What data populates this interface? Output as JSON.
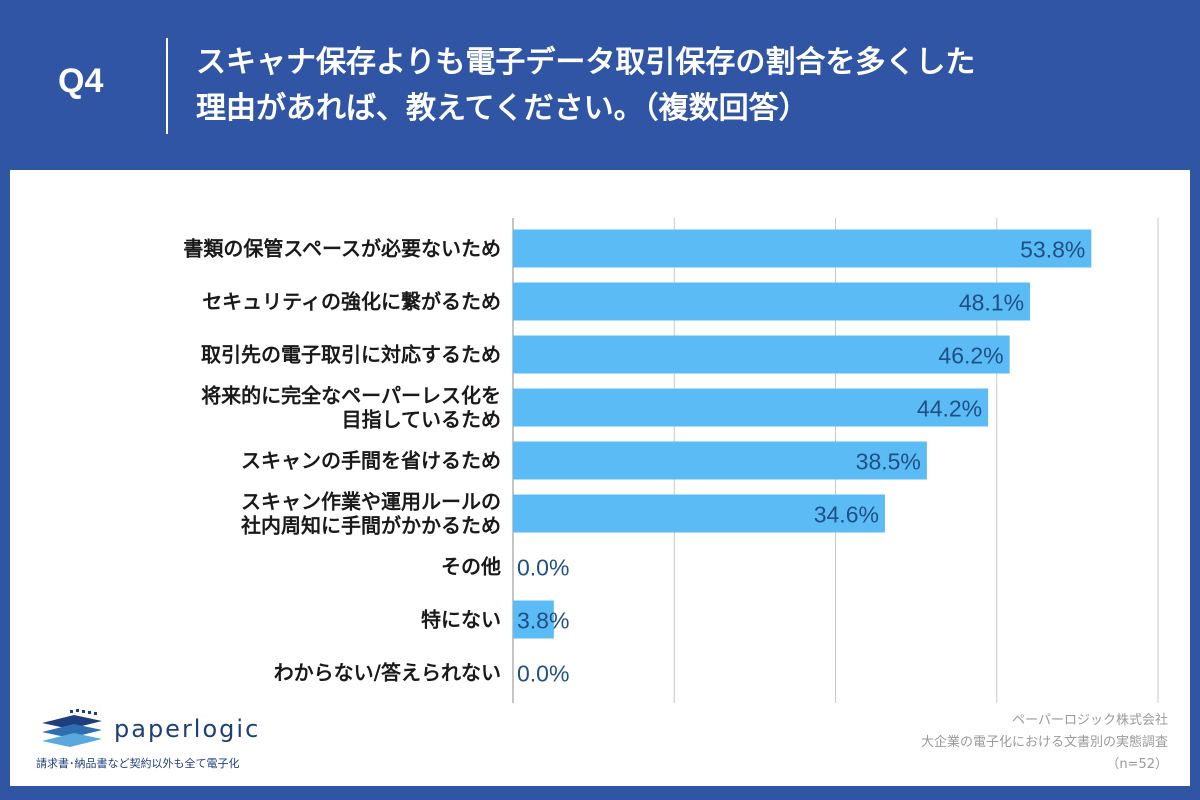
{
  "header": {
    "q_number": "Q4",
    "title_line1": "スキャナ保存よりも電子データ取引保存の割合を多くした",
    "title_line2": "理由があれば、教えてください。（複数回答）"
  },
  "colors": {
    "header_bg": "#2f55a4",
    "bar": "#5bbcf5",
    "value_text": "#1f4f86",
    "label_text": "#1a1a1a",
    "grid": "#c8c8c8"
  },
  "chart_data": {
    "type": "bar",
    "orientation": "horizontal",
    "categories": [
      [
        "書類の保管スペースが必要ないため"
      ],
      [
        "セキュリティの強化に繋がるため"
      ],
      [
        "取引先の電子取引に対応するため"
      ],
      [
        "将来的に完全なペーパーレス化を",
        "目指しているため"
      ],
      [
        "スキャンの手間を省けるため"
      ],
      [
        "スキャン作業や運用ルールの",
        "社内周知に手間がかかるため"
      ],
      [
        "その他"
      ],
      [
        "特にない"
      ],
      [
        "わからない/答えられない"
      ]
    ],
    "values": [
      53.8,
      48.1,
      46.2,
      44.2,
      38.5,
      34.6,
      0.0,
      3.8,
      0.0
    ],
    "value_labels": [
      "53.8%",
      "48.1%",
      "46.2%",
      "44.2%",
      "38.5%",
      "34.6%",
      "0.0%",
      "3.8%",
      "0.0%"
    ],
    "xlim": [
      0,
      60
    ],
    "grid_step": 15,
    "grid": true
  },
  "logo": {
    "name": "paperlogic",
    "tagline": "請求書･納品書など契約以外も全て電子化"
  },
  "credit": {
    "company": "ペーパーロジック株式会社",
    "survey": "大企業の電子化における文書別の実態調査",
    "sample": "（n=52）"
  }
}
